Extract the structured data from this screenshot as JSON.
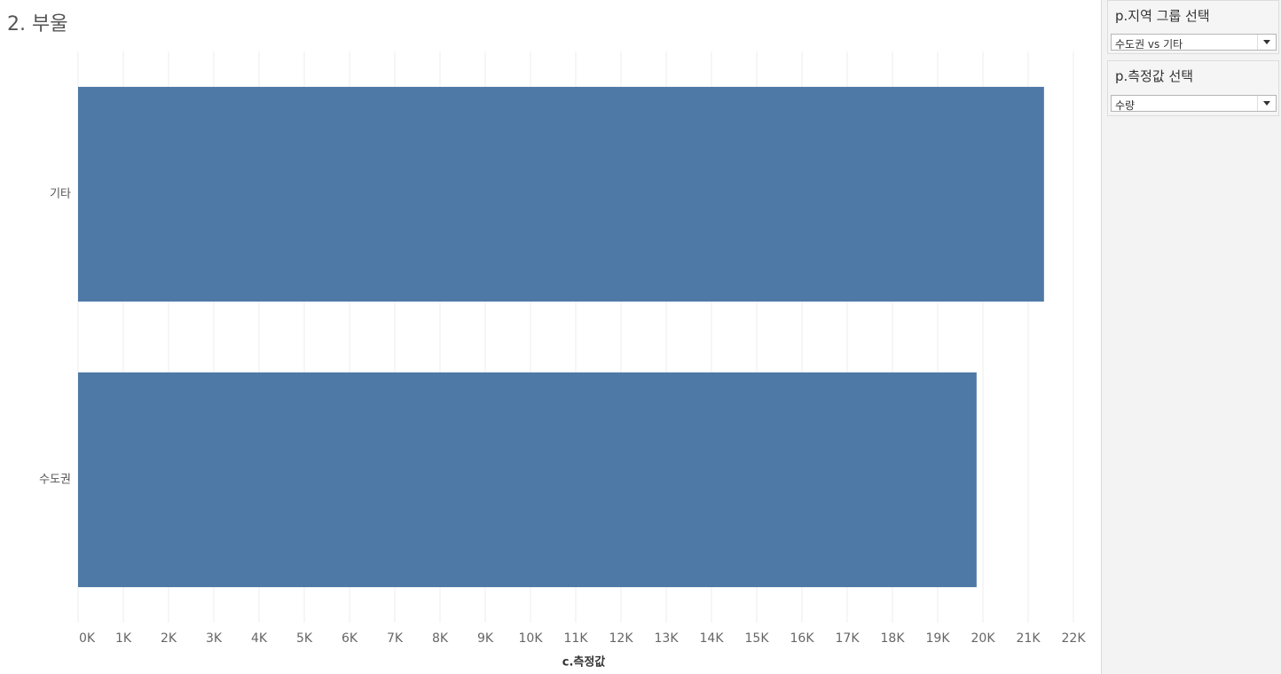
{
  "chart_data": {
    "type": "bar",
    "orientation": "horizontal",
    "title": "2. 부울",
    "x_label": "c.측정값",
    "categories": [
      "기타",
      "수도권"
    ],
    "values": [
      21350,
      19860
    ],
    "color": "#4e79a7",
    "xlim": [
      0,
      22400
    ],
    "xticks": [
      {
        "value": 0,
        "label": "0K"
      },
      {
        "value": 1000,
        "label": "1K"
      },
      {
        "value": 2000,
        "label": "2K"
      },
      {
        "value": 3000,
        "label": "3K"
      },
      {
        "value": 4000,
        "label": "4K"
      },
      {
        "value": 5000,
        "label": "5K"
      },
      {
        "value": 6000,
        "label": "6K"
      },
      {
        "value": 7000,
        "label": "7K"
      },
      {
        "value": 8000,
        "label": "8K"
      },
      {
        "value": 9000,
        "label": "9K"
      },
      {
        "value": 10000,
        "label": "10K"
      },
      {
        "value": 11000,
        "label": "11K"
      },
      {
        "value": 12000,
        "label": "12K"
      },
      {
        "value": 13000,
        "label": "13K"
      },
      {
        "value": 14000,
        "label": "14K"
      },
      {
        "value": 15000,
        "label": "15K"
      },
      {
        "value": 16000,
        "label": "16K"
      },
      {
        "value": 17000,
        "label": "17K"
      },
      {
        "value": 18000,
        "label": "18K"
      },
      {
        "value": 19000,
        "label": "19K"
      },
      {
        "value": 20000,
        "label": "20K"
      },
      {
        "value": 21000,
        "label": "21K"
      },
      {
        "value": 22000,
        "label": "22K"
      }
    ],
    "grid": true
  },
  "sidebar": {
    "filters": [
      {
        "title": "p.지역 그룹 선택",
        "selected": "수도권 vs 기타"
      },
      {
        "title": "p.측정값 선택",
        "selected": "수량"
      }
    ]
  }
}
